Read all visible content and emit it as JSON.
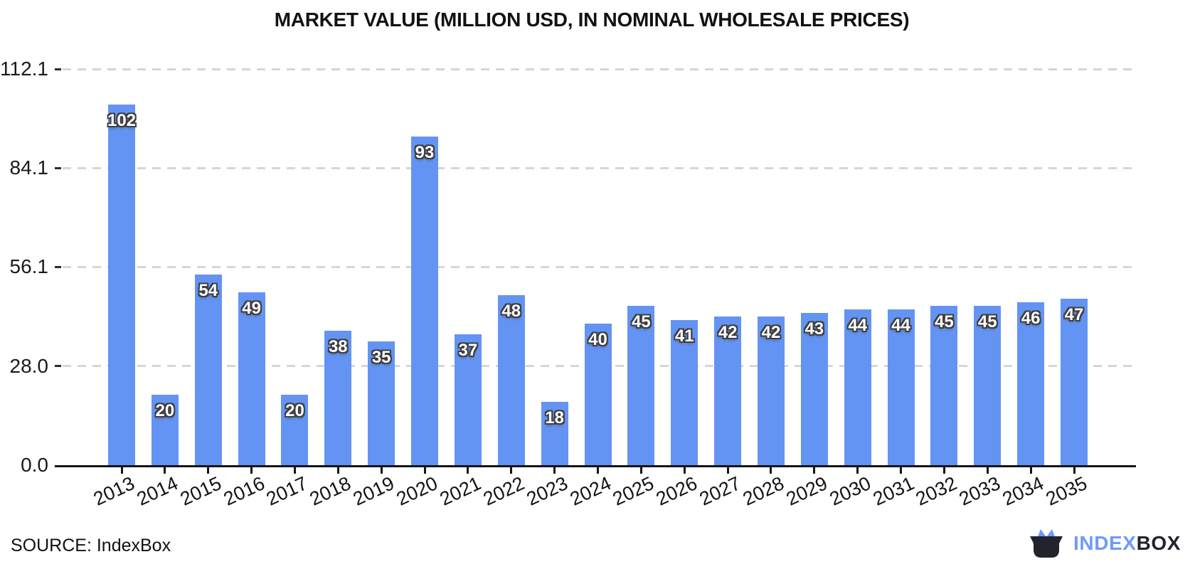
{
  "title": "MARKET VALUE (MILLION USD, IN NOMINAL WHOLESALE PRICES)",
  "source": {
    "text": "SOURCE: IndexBox"
  },
  "logo": {
    "index": "INDEX",
    "box": "BOX"
  },
  "chart_data": {
    "type": "bar",
    "title": "MARKET VALUE (MILLION USD, IN NOMINAL WHOLESALE PRICES)",
    "categories": [
      "2013",
      "2014",
      "2015",
      "2016",
      "2017",
      "2018",
      "2019",
      "2020",
      "2021",
      "2022",
      "2023",
      "2024",
      "2025",
      "2026",
      "2027",
      "2028",
      "2029",
      "2030",
      "2031",
      "2032",
      "2033",
      "2034",
      "2035"
    ],
    "values": [
      102,
      20,
      54,
      49,
      20,
      38,
      35,
      93,
      37,
      48,
      18,
      40,
      45,
      41,
      42,
      42,
      43,
      44,
      44,
      45,
      45,
      46,
      47
    ],
    "xlabel": "",
    "ylabel": "",
    "ylim": [
      0,
      112.1
    ],
    "yticks": [
      0.0,
      28.0,
      56.1,
      84.1,
      112.1
    ],
    "ytick_labels": [
      "0.0",
      "28.0",
      "56.1",
      "84.1",
      "112.1"
    ],
    "grid": "horizontal-dashed",
    "legend_position": "none",
    "bar_color": "#6494f3",
    "bar_label_color": "#ffffff",
    "gridline_color": "#d6d6d6",
    "axis_color": "#151515"
  }
}
